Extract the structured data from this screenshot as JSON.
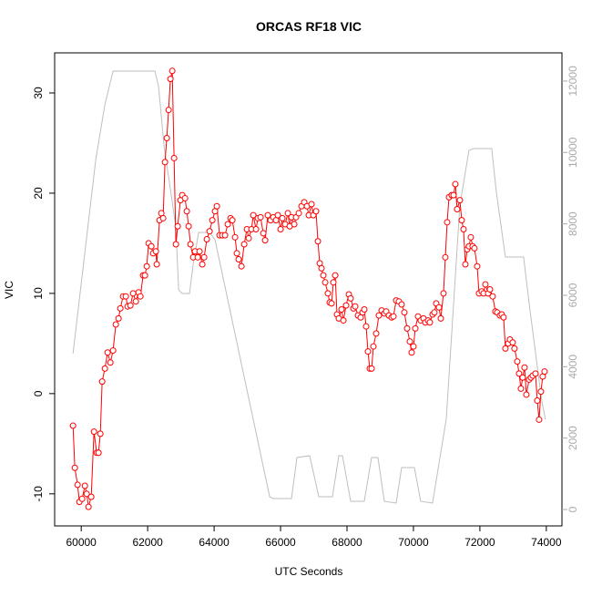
{
  "chart_data": {
    "type": "line",
    "title": "ORCAS RF18 VIC",
    "x_label": "UTC Seconds",
    "y_label": "VIC",
    "xlim": [
      59200,
      74470
    ],
    "xticks": [
      60000,
      62000,
      64000,
      66000,
      68000,
      70000,
      72000,
      74000
    ],
    "ylim": [
      -13.2,
      34
    ],
    "yticks": [
      -10,
      0,
      10,
      20,
      30
    ],
    "y2lim": [
      -460,
      12790
    ],
    "y2ticks": [
      0,
      2000,
      4000,
      6000,
      8000,
      10000,
      12000
    ],
    "series": [
      {
        "color": "#ff0000",
        "marker": "circle",
        "x": [
          59753,
          59808,
          59890,
          59945,
          60027,
          60110,
          60164,
          60219,
          60301,
          60384,
          60466,
          60521,
          60575,
          60630,
          60712,
          60795,
          60877,
          60959,
          61041,
          61123,
          61178,
          61260,
          61343,
          61397,
          61480,
          61562,
          61644,
          61726,
          61781,
          61863,
          61918,
          61973,
          62028,
          62110,
          62165,
          62247,
          62274,
          62356,
          62411,
          62466,
          62521,
          62576,
          62630,
          62685,
          62740,
          62795,
          62850,
          62904,
          62987,
          63041,
          63124,
          63178,
          63233,
          63288,
          63370,
          63425,
          63507,
          63562,
          63644,
          63699,
          63781,
          63863,
          63946,
          64028,
          64083,
          64165,
          64247,
          64329,
          64411,
          64494,
          64548,
          64631,
          64685,
          64740,
          64822,
          64905,
          64987,
          65042,
          65124,
          65179,
          65261,
          65316,
          65398,
          65480,
          65535,
          65617,
          65699,
          65781,
          65864,
          65918,
          66001,
          66055,
          66138,
          66220,
          66275,
          66329,
          66412,
          66466,
          66549,
          66631,
          66713,
          66795,
          66850,
          66932,
          66987,
          67069,
          67124,
          67179,
          67233,
          67288,
          67343,
          67425,
          67480,
          67535,
          67590,
          67645,
          67699,
          67754,
          67836,
          67891,
          67973,
          68056,
          68110,
          68193,
          68247,
          68330,
          68412,
          68467,
          68521,
          68576,
          68631,
          68686,
          68741,
          68795,
          68878,
          68960,
          69042,
          69124,
          69179,
          69261,
          69343,
          69398,
          69480,
          69563,
          69645,
          69727,
          69809,
          69891,
          69946,
          70001,
          70056,
          70138,
          70220,
          70302,
          70357,
          70439,
          70494,
          70576,
          70631,
          70686,
          70768,
          70823,
          70905,
          70960,
          71015,
          71070,
          71152,
          71207,
          71261,
          71316,
          71398,
          71453,
          71508,
          71563,
          71618,
          71672,
          71727,
          71782,
          71837,
          71919,
          71974,
          72056,
          72111,
          72166,
          72248,
          72303,
          72385,
          72467,
          72522,
          72604,
          72659,
          72714,
          72768,
          72851,
          72905,
          72988,
          73042,
          73125,
          73180,
          73235,
          73289,
          73344,
          73399,
          73481,
          73536,
          73591,
          73673,
          73728,
          73782,
          73837,
          73892,
          73947
        ],
        "values": [
          -3.2,
          -7.4,
          -9.1,
          -10.8,
          -10.5,
          -9.2,
          -10,
          -11.3,
          -10.3,
          -3.8,
          -5.9,
          -5.9,
          -4,
          1.2,
          2.5,
          4.1,
          3.1,
          4.3,
          6.9,
          7.5,
          8.5,
          9.7,
          9.7,
          8.7,
          8.8,
          10,
          9.2,
          10.1,
          9.7,
          11.8,
          11.8,
          12.7,
          15,
          14.7,
          14,
          14.2,
          12.9,
          17.3,
          18,
          17.5,
          23.1,
          25.5,
          28.3,
          31.4,
          32.2,
          23.5,
          14.9,
          16.7,
          19.3,
          19.8,
          19.5,
          18.2,
          16.7,
          14.9,
          13.6,
          14.2,
          13.6,
          14.2,
          12.9,
          13.6,
          15.4,
          16.2,
          17.3,
          18.2,
          18.7,
          15.8,
          15.8,
          15.8,
          16.9,
          17.5,
          17.3,
          15.6,
          14,
          13.4,
          12.7,
          14.9,
          16.4,
          15.5,
          16.4,
          17.8,
          16.4,
          17.5,
          17.6,
          16,
          15.3,
          17.8,
          17.3,
          17.6,
          17.3,
          17.8,
          16.4,
          17.5,
          16.9,
          18,
          16.7,
          17.6,
          16.9,
          17.6,
          18,
          18.7,
          19.1,
          18.7,
          17.8,
          18.9,
          17.8,
          18.2,
          15.2,
          13,
          12.5,
          11.8,
          11.1,
          10,
          9.1,
          9,
          11.1,
          11.8,
          7.9,
          7.5,
          8.4,
          7.3,
          8.8,
          9.9,
          9.5,
          8.5,
          8.7,
          7.8,
          7.6,
          8.1,
          8.4,
          6.7,
          4.2,
          2.5,
          2.5,
          4.7,
          6,
          7.8,
          8.3,
          8,
          8.2,
          7.8,
          7.6,
          7.7,
          9.3,
          9.2,
          8.9,
          8.1,
          6.5,
          5.2,
          4.1,
          4.7,
          6.5,
          7.7,
          7.3,
          7.5,
          7.1,
          7.3,
          7.1,
          7.9,
          8.1,
          9,
          8.6,
          7.5,
          10,
          13.6,
          17.1,
          19.6,
          19.8,
          19.8,
          20.9,
          18.4,
          19.3,
          17.3,
          16.4,
          12.9,
          14.4,
          14.7,
          15.6,
          14.7,
          14.5,
          12.7,
          10,
          10.2,
          10,
          10.9,
          10,
          10.4,
          9.7,
          8.2,
          8.1,
          7.8,
          7.9,
          7.6,
          4.5,
          5,
          5.4,
          5.1,
          4.5,
          3.2,
          2,
          0.5,
          1.6,
          2.6,
          -0.1,
          1.4,
          1.6,
          1.8,
          2,
          -0.7,
          -2.6,
          0.2,
          1.7,
          2.2
        ]
      },
      {
        "color": "#bebebe",
        "axis": "y2",
        "x": [
          59753,
          60438,
          60712,
          60959,
          62219,
          62329,
          62493,
          62713,
          62849,
          62932,
          63041,
          63260,
          63370,
          63534,
          63863,
          64027,
          65672,
          65781,
          66329,
          66493,
          66877,
          67151,
          67562,
          67754,
          67863,
          68110,
          68521,
          68740,
          68932,
          69123,
          69480,
          69644,
          70028,
          70219,
          70575,
          70987,
          71398,
          71672,
          71808,
          72356,
          72493,
          72767,
          73315,
          73507,
          73863,
          73973
        ],
        "values": [
          4366,
          9803,
          11335,
          12280,
          12280,
          11846,
          10186,
          8782,
          7889,
          6153,
          6051,
          6051,
          6868,
          7761,
          7761,
          7557,
          357,
          306,
          306,
          1455,
          1506,
          357,
          357,
          1506,
          1506,
          230,
          230,
          1455,
          1455,
          230,
          179,
          1174,
          1174,
          230,
          179,
          2527,
          8527,
          10059,
          10110,
          10110,
          8910,
          7072,
          7072,
          5591,
          3038,
          2527
        ]
      }
    ]
  }
}
